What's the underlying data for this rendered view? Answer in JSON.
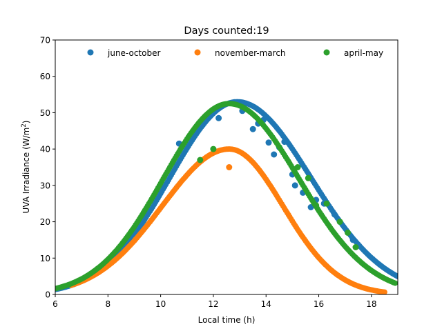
{
  "chart_data": {
    "type": "scatter",
    "title": "Days counted:19",
    "xlabel": "Local time (h)",
    "ylabel": "UVA Irradiance (W/m",
    "ylabel_sup": "2",
    "ylabel_close": ")",
    "xlim": [
      6,
      19
    ],
    "ylim": [
      0,
      70
    ],
    "xticks": [
      6,
      8,
      10,
      12,
      14,
      16,
      18
    ],
    "yticks": [
      0,
      10,
      20,
      30,
      40,
      50,
      60,
      70
    ],
    "legend": {
      "placement": "top",
      "ncol": 3
    },
    "grid": false,
    "series": [
      {
        "name": "june-october",
        "color": "#1f77b4",
        "curve": {
          "peak": 53,
          "center": 12.9,
          "sigma_left": 2.55,
          "sigma_right": 2.8,
          "x_start": 6.0,
          "x_end": 19.0
        },
        "outliers": [
          [
            10.7,
            41.5
          ],
          [
            12.2,
            48.5
          ],
          [
            13.1,
            50.5
          ],
          [
            13.5,
            45.5
          ],
          [
            13.7,
            47
          ],
          [
            13.9,
            48
          ],
          [
            14.1,
            41.8
          ],
          [
            14.3,
            38.5
          ],
          [
            14.5,
            40.5
          ],
          [
            14.7,
            42
          ],
          [
            15.0,
            33
          ],
          [
            15.1,
            30
          ],
          [
            15.4,
            28
          ],
          [
            15.7,
            24
          ],
          [
            15.9,
            26
          ],
          [
            16.2,
            25
          ],
          [
            16.6,
            22
          ],
          [
            17.3,
            15
          ]
        ]
      },
      {
        "name": "november-march",
        "color": "#ff7f0e",
        "curve": {
          "peak": 40,
          "center": 12.6,
          "sigma_left": 2.55,
          "sigma_right": 2.05,
          "x_start": 6.6,
          "x_end": 18.5
        },
        "outliers": [
          [
            12.6,
            35
          ]
        ]
      },
      {
        "name": "april-may",
        "color": "#2ca02c",
        "curve": {
          "peak": 52.5,
          "center": 12.6,
          "sigma_left": 2.5,
          "sigma_right": 2.65,
          "x_start": 6.0,
          "x_end": 18.9
        },
        "outliers": [
          [
            11.5,
            37
          ],
          [
            12.0,
            40
          ],
          [
            15.2,
            35
          ],
          [
            15.6,
            32
          ],
          [
            15.9,
            24.5
          ],
          [
            16.3,
            25
          ],
          [
            16.8,
            20
          ],
          [
            17.1,
            17
          ],
          [
            17.4,
            13
          ]
        ]
      }
    ]
  }
}
